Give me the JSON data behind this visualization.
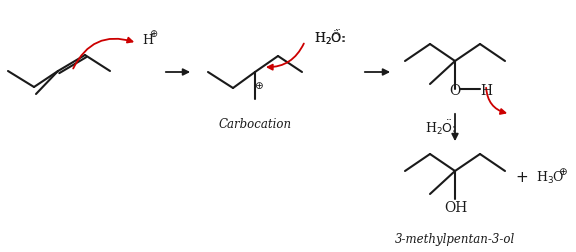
{
  "bg_color": "#ffffff",
  "line_color": "#1a1a1a",
  "red_color": "#cc0000",
  "lw": 1.5,
  "figsize": [
    5.76,
    2.53
  ],
  "dpi": 100,
  "label_carbocation": "Carbocation",
  "label_product": "3-methylpentan-3-ol",
  "label_H2O_colon": "H₂Ö:",
  "label_H3O": "H₃O",
  "plus_sign": "+",
  "circ_plus": "⊕"
}
